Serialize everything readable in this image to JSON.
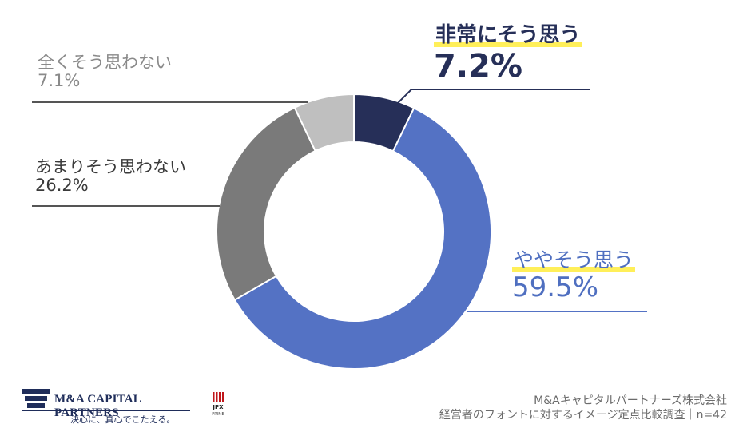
{
  "chart_data": {
    "type": "pie",
    "style": "donut",
    "categories": [
      "非常にそう思う",
      "ややそう思う",
      "あまりそう思わない",
      "全くそう思わない"
    ],
    "values": [
      7.2,
      59.5,
      26.2,
      7.1
    ],
    "labels": [
      "7.2%",
      "59.5%",
      "26.2%",
      "7.1%"
    ],
    "colors": [
      "#262f58",
      "#5472c4",
      "#7a7a7a",
      "#bfbfbf"
    ],
    "title": "",
    "legend": "none"
  },
  "footer": {
    "brand_name": "M&A CAPITAL PARTNERS",
    "brand_tagline": "決心に、真心でこたえる。",
    "jpx_label": "JPX",
    "jpx_sub": "PRIME",
    "company": "M&Aキャピタルパートナーズ株式会社",
    "survey": "経営者のフォントに対するイメージ定点比較調査｜n=42"
  }
}
